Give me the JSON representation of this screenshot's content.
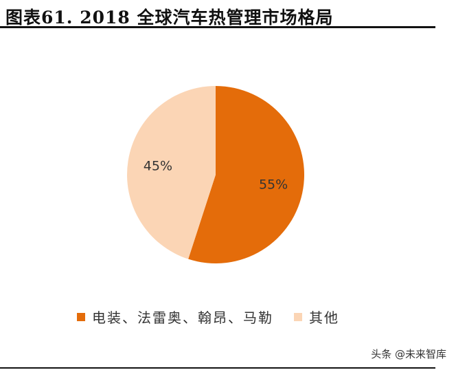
{
  "header": {
    "title": "图表61.  2018 全球汽车热管理市场格局"
  },
  "chart_data": {
    "type": "pie",
    "title": "",
    "slices": [
      {
        "label": "电装、法雷奥、翰昂、马勒",
        "value": 55,
        "display": "55%",
        "color": "#E46C0A"
      },
      {
        "label": "其他",
        "value": 45,
        "display": "45%",
        "color": "#FBD5B5"
      }
    ],
    "legend_position": "bottom"
  },
  "watermark": {
    "text": "头条 @未来智库"
  }
}
